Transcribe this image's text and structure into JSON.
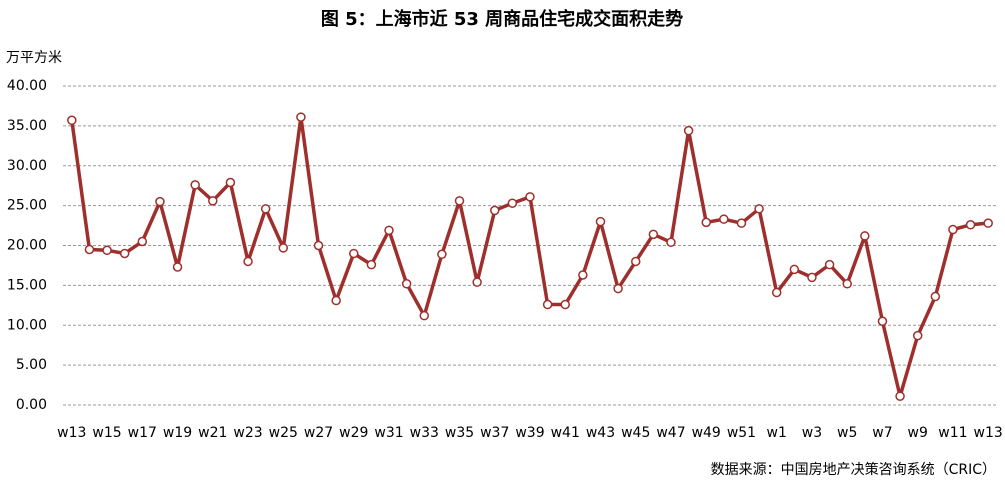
{
  "chart_data": {
    "type": "line",
    "title": "图 5：上海市近 53 周商品住宅成交面积走势",
    "y_axis_label": "万平方米",
    "source": "数据来源：中国房地产决策咨询系统（CRIC）",
    "categories": [
      "w13",
      null,
      "w15",
      null,
      "w17",
      null,
      "w19",
      null,
      "w21",
      null,
      "w23",
      null,
      "w25",
      null,
      "w27",
      null,
      "w29",
      null,
      "w31",
      null,
      "w33",
      null,
      "w35",
      null,
      "w37",
      null,
      "w39",
      null,
      "w41",
      null,
      "w43",
      null,
      "w45",
      null,
      "w47",
      null,
      "w49",
      null,
      "w51",
      null,
      "w1",
      null,
      "w3",
      null,
      "w5",
      null,
      "w7",
      null,
      "w9",
      null,
      "w11",
      null,
      "w13"
    ],
    "values": [
      35.7,
      19.5,
      19.4,
      19.0,
      20.5,
      25.5,
      17.3,
      27.6,
      25.6,
      27.9,
      18.0,
      24.6,
      19.7,
      36.1,
      20.0,
      13.1,
      19.0,
      17.6,
      21.9,
      15.2,
      11.2,
      18.9,
      25.6,
      15.4,
      24.4,
      25.3,
      26.1,
      12.6,
      12.6,
      16.3,
      23.0,
      14.6,
      18.0,
      21.4,
      20.4,
      34.4,
      22.9,
      23.3,
      22.8,
      24.6,
      14.1,
      17.0,
      16.0,
      17.6,
      15.2,
      21.2,
      10.5,
      1.1,
      8.7,
      13.6,
      22.0,
      22.6,
      22.8
    ],
    "color": "#9e2f2c",
    "ylim": [
      0,
      40
    ],
    "yticks": [
      {
        "value": 0,
        "label": "0.00"
      },
      {
        "value": 5,
        "label": "5.00"
      },
      {
        "value": 10,
        "label": "10.00"
      },
      {
        "value": 15,
        "label": "15.00"
      },
      {
        "value": 20,
        "label": "20.00"
      },
      {
        "value": 25,
        "label": "25.00"
      },
      {
        "value": 30,
        "label": "30.00"
      },
      {
        "value": 35,
        "label": "35.00"
      },
      {
        "value": 40,
        "label": "40.00"
      }
    ],
    "grid": true
  }
}
